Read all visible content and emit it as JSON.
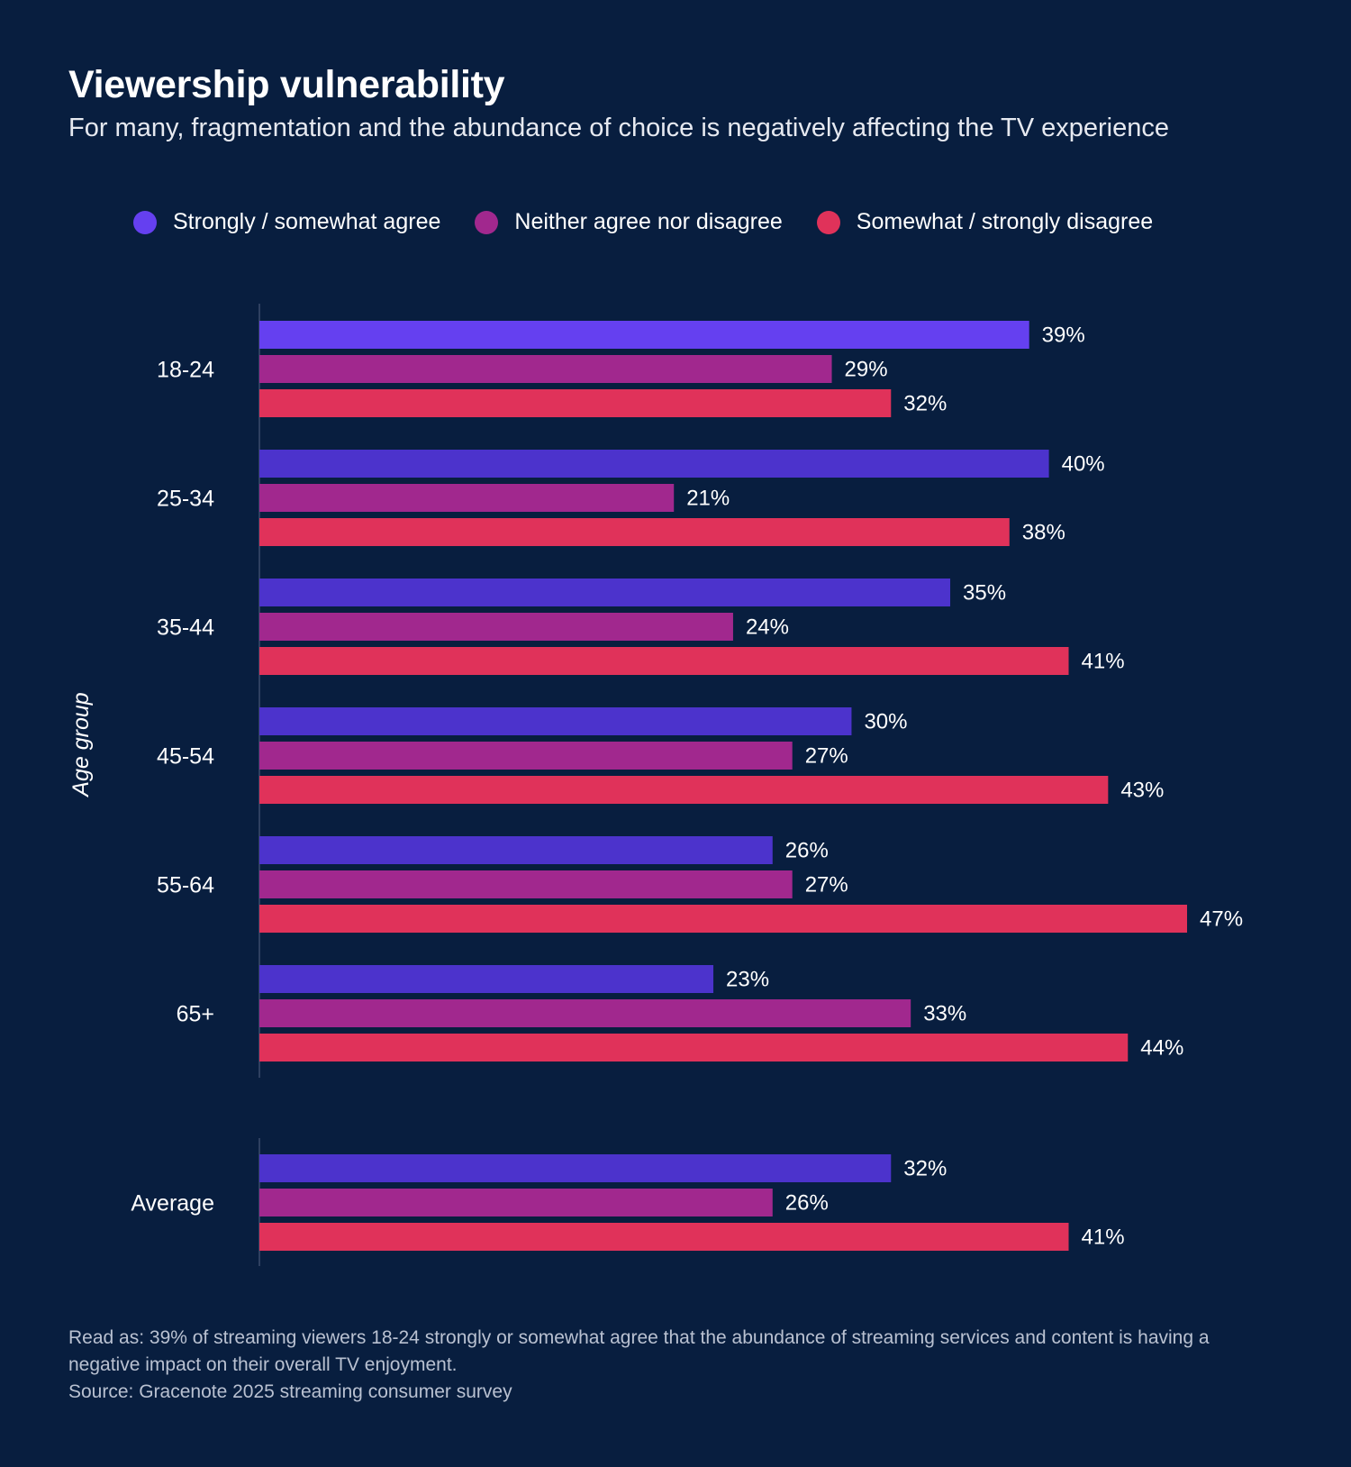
{
  "header": {
    "title": "Viewership vulnerability",
    "subtitle": "For many, fragmentation and the abundance of choice is negatively affecting the TV experience"
  },
  "legend": [
    {
      "label": "Strongly / somewhat agree",
      "color": "#6540f0"
    },
    {
      "label": "Neither agree nor disagree",
      "color": "#a1288e"
    },
    {
      "label": "Somewhat / strongly disagree",
      "color": "#e0325a"
    }
  ],
  "footnote": {
    "read_as": "Read as: 39% of streaming viewers 18-24 strongly or somewhat agree that the abundance of streaming services and content is having a negative impact on their overall TV enjoyment.",
    "source": "Source: Gracenote 2025 streaming consumer survey"
  },
  "chart_data": {
    "type": "bar",
    "orientation": "horizontal",
    "ylabel": "Age group",
    "xlabel": "",
    "xlim": [
      0,
      50
    ],
    "grid": false,
    "legend_position": "top",
    "categories": [
      "18-24",
      "25-34",
      "35-44",
      "45-54",
      "55-64",
      "65+",
      "Average"
    ],
    "series": [
      {
        "name": "Strongly / somewhat agree",
        "color": "#6540f0",
        "values": [
          39,
          40,
          35,
          30,
          26,
          23,
          32
        ]
      },
      {
        "name": "Neither agree nor disagree",
        "color": "#a1288e",
        "values": [
          29,
          21,
          24,
          27,
          27,
          33,
          26
        ]
      },
      {
        "name": "Somewhat / strongly disagree",
        "color": "#e0325a",
        "values": [
          32,
          38,
          41,
          43,
          47,
          44,
          41
        ]
      }
    ],
    "value_suffix": "%"
  }
}
